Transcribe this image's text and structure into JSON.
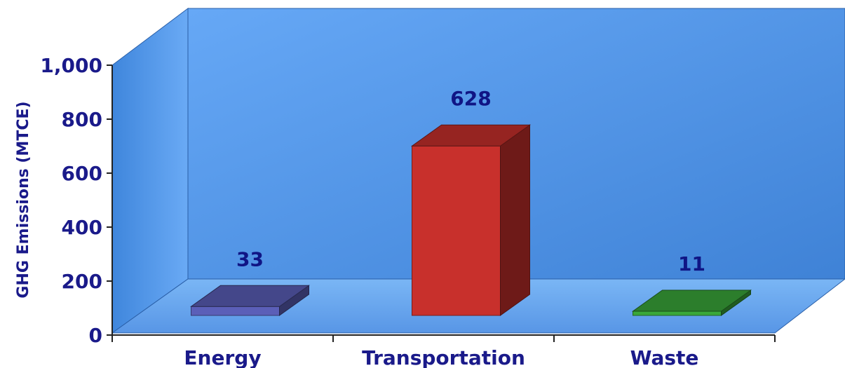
{
  "chart_data": {
    "type": "bar",
    "categories": [
      "Energy",
      "Transportation",
      "Waste"
    ],
    "values": [
      33,
      628,
      11
    ],
    "title": "",
    "xlabel": "",
    "ylabel": "GHG Emissions (MTCE)",
    "ylim": [
      0,
      1000
    ],
    "y_ticks": [
      "0",
      "200",
      "400",
      "600",
      "800",
      "1,000"
    ],
    "data_labels": [
      "33",
      "628",
      "11"
    ],
    "grid": false,
    "three_d": true,
    "colors": {
      "background_wall": "#5a9ef0",
      "floor": "#6aaaf2",
      "side_wall": "#4f94e6",
      "label_text": "#1a1a8a",
      "bars": [
        "#5b5fb8",
        "#c8302c",
        "#3aa83a"
      ]
    }
  }
}
